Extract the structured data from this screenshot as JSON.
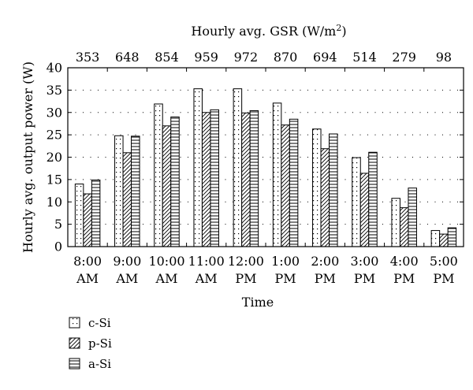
{
  "chart_data": {
    "type": "bar",
    "title": "",
    "xlabel": "Time",
    "ylabel": "Hourly avg. output power (W)",
    "top_axis_label": "Hourly avg. GSR (W/m",
    "top_axis_label_sup": "2",
    "top_axis_label_end": ")",
    "ylim": [
      0,
      40
    ],
    "yticks": [
      0,
      5,
      10,
      15,
      20,
      25,
      30,
      35,
      40
    ],
    "grid": "dotted horizontal",
    "legend_position": "bottom-left",
    "categories": [
      [
        "8:00",
        "AM"
      ],
      [
        "9:00",
        "AM"
      ],
      [
        "10:00",
        "AM"
      ],
      [
        "11:00",
        "AM"
      ],
      [
        "12:00",
        "PM"
      ],
      [
        "1:00",
        "PM"
      ],
      [
        "2:00",
        "PM"
      ],
      [
        "3:00",
        "PM"
      ],
      [
        "4:00",
        "PM"
      ],
      [
        "5:00",
        "PM"
      ]
    ],
    "gsr": [
      353,
      648,
      854,
      959,
      972,
      870,
      694,
      514,
      279,
      98
    ],
    "series": [
      {
        "name": "c-Si",
        "pattern": "dots",
        "values": [
          14.0,
          24.8,
          31.9,
          35.3,
          35.3,
          32.1,
          26.3,
          19.9,
          10.8,
          3.6
        ]
      },
      {
        "name": "p-Si",
        "pattern": "diagonal",
        "values": [
          11.8,
          21.0,
          27.0,
          30.0,
          29.9,
          27.2,
          21.9,
          16.4,
          8.7,
          2.8
        ]
      },
      {
        "name": "a-Si",
        "pattern": "horizontal",
        "values": [
          14.9,
          24.7,
          29.0,
          30.6,
          30.4,
          28.5,
          25.2,
          21.1,
          13.1,
          4.2
        ]
      }
    ]
  }
}
